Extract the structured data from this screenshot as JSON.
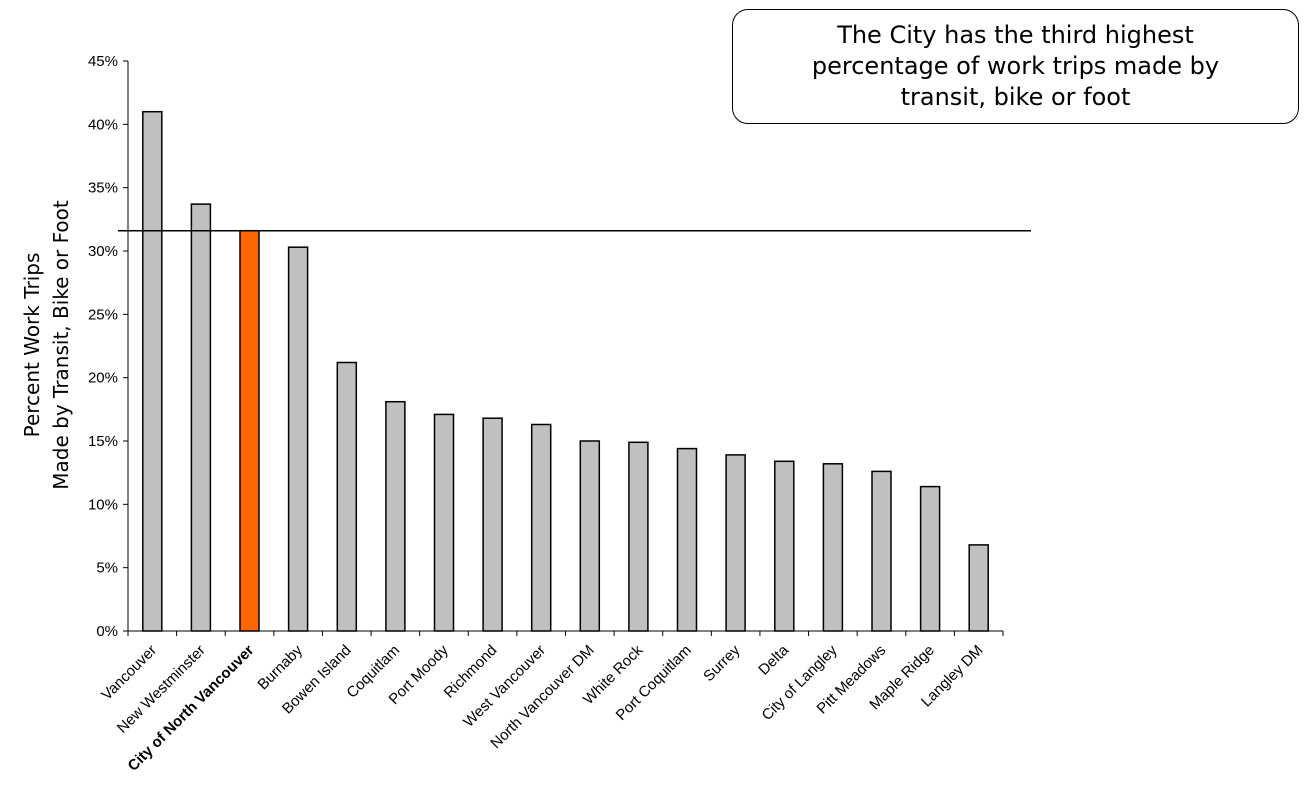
{
  "colors": {
    "bar": "#c0c0c0",
    "highlight": "#ff6600",
    "outline": "#000000"
  },
  "chart_data": {
    "type": "bar",
    "title": "",
    "xlabel": "",
    "ylabel_line1": "Percent Work Trips",
    "ylabel_line2": "Made by Transit, Bike or Foot",
    "ylim": [
      0,
      0.45
    ],
    "yticks": [
      {
        "value": 0.0,
        "label": "0%"
      },
      {
        "value": 0.05,
        "label": "5%"
      },
      {
        "value": 0.1,
        "label": "10%"
      },
      {
        "value": 0.15,
        "label": "15%"
      },
      {
        "value": 0.2,
        "label": "20%"
      },
      {
        "value": 0.25,
        "label": "25%"
      },
      {
        "value": 0.3,
        "label": "30%"
      },
      {
        "value": 0.35,
        "label": "35%"
      },
      {
        "value": 0.4,
        "label": "40%"
      },
      {
        "value": 0.45,
        "label": "45%"
      }
    ],
    "categories": [
      "Vancouver",
      "New Westminster",
      "City of North Vancouver",
      "Burnaby",
      "Bowen Island",
      "Coquitlam",
      "Port Moody",
      "Richmond",
      "West Vancouver",
      "North Vancouver DM",
      "White Rock",
      "Port Coquitlam",
      "Surrey",
      "Delta",
      "City of Langley",
      "Pitt Meadows",
      "Maple Ridge",
      "Langley DM"
    ],
    "values": [
      0.41,
      0.337,
      0.316,
      0.303,
      0.212,
      0.181,
      0.171,
      0.168,
      0.163,
      0.15,
      0.149,
      0.144,
      0.139,
      0.134,
      0.132,
      0.126,
      0.114,
      0.068
    ],
    "highlight_category": "City of North Vancouver",
    "reference_line": 0.316,
    "grid": false,
    "legend": "none"
  },
  "callout": {
    "text": "The City has the third highest percentage of work trips made by transit, bike or foot"
  }
}
